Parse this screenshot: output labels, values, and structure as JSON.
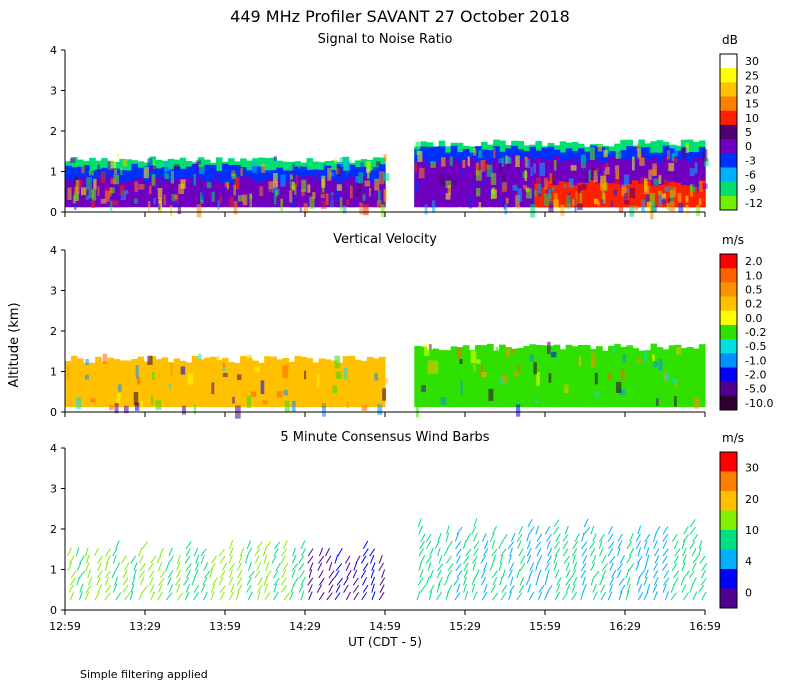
{
  "figure": {
    "title": "449 MHz Profiler SAVANT 27 October 2018",
    "ylabel": "Altitude (km)",
    "xlabel": "UT  (CDT - 5)",
    "footnote": "Simple filtering applied",
    "x_tick_labels": [
      "12:59",
      "13:29",
      "13:59",
      "14:29",
      "14:59",
      "15:29",
      "15:59",
      "16:29",
      "16:59"
    ],
    "y_tick_labels": [
      "0",
      "1",
      "2",
      "3",
      "4"
    ]
  },
  "chart_data": [
    {
      "type": "heatmap",
      "title": "Signal to Noise Ratio",
      "unit": "dB",
      "xlim": [
        "12:59",
        "16:59"
      ],
      "ylim": [
        0,
        4
      ],
      "data_gap": [
        "14:59",
        "15:10"
      ],
      "colorbar": {
        "labels": [
          "30",
          "25",
          "20",
          "15",
          "10",
          "5",
          "0",
          "-3",
          "-6",
          "-9",
          "-12"
        ],
        "colors": [
          "#ffffff",
          "#ffff00",
          "#ffc000",
          "#ff8000",
          "#ff2000",
          "#500070",
          "#7000c0",
          "#0030ff",
          "#00b0ff",
          "#00e070",
          "#70f000"
        ]
      },
      "layers": [
        {
          "from": "12:59",
          "to": "14:59",
          "top_km": 1.3,
          "level": "-9"
        },
        {
          "from": "12:59",
          "to": "14:59",
          "top_km": 1.1,
          "level": "-3"
        },
        {
          "from": "12:59",
          "to": "14:59",
          "top_km": 0.8,
          "level": "0"
        },
        {
          "from": "15:10",
          "to": "16:59",
          "top_km": 1.7,
          "level": "-9"
        },
        {
          "from": "15:10",
          "to": "16:59",
          "top_km": 1.55,
          "level": "-3"
        },
        {
          "from": "15:10",
          "to": "16:59",
          "top_km": 1.3,
          "level": "0"
        },
        {
          "from": "15:55",
          "to": "16:59",
          "top_km": 0.7,
          "level": "10"
        }
      ]
    },
    {
      "type": "heatmap",
      "title": "Vertical Velocity",
      "unit": "m/s",
      "xlim": [
        "12:59",
        "16:59"
      ],
      "ylim": [
        0,
        4
      ],
      "colorbar": {
        "labels": [
          "2.0",
          "1.0",
          "0.5",
          "0.2",
          "0.0",
          "-0.2",
          "-0.5",
          "-1.0",
          "-2.0",
          "-5.0",
          "-10.0"
        ],
        "colors": [
          "#ff0000",
          "#ff6000",
          "#ff9000",
          "#ffc000",
          "#ffff00",
          "#30e000",
          "#00e0e0",
          "#0090ff",
          "#0000ff",
          "#500090",
          "#300030"
        ]
      },
      "layers": [
        {
          "from": "12:59",
          "to": "14:59",
          "top_km": 1.3,
          "level": "0.2"
        },
        {
          "from": "15:10",
          "to": "16:59",
          "top_km": 1.6,
          "level": "-0.2"
        }
      ]
    },
    {
      "type": "wind_barbs",
      "title": "5 Minute Consensus Wind Barbs",
      "unit": "m/s",
      "xlim": [
        "12:59",
        "16:59"
      ],
      "ylim": [
        0,
        4
      ],
      "colorbar": {
        "labels": [
          "30",
          "20",
          "10",
          "4",
          "0"
        ],
        "colors": [
          "#ff0000",
          "#ff8000",
          "#ffc000",
          "#80f000",
          "#00e080",
          "#00b0ff",
          "#0000ff",
          "#500090"
        ]
      },
      "profiles": [
        {
          "from": "12:59",
          "to": "14:29",
          "max_km": 1.6,
          "speed_m_s": 10
        },
        {
          "from": "14:29",
          "to": "14:59",
          "max_km": 1.6,
          "speed_m_s": 3
        },
        {
          "from": "15:10",
          "to": "16:59",
          "max_km": 2.1,
          "speed_m_s": 7
        }
      ]
    }
  ]
}
